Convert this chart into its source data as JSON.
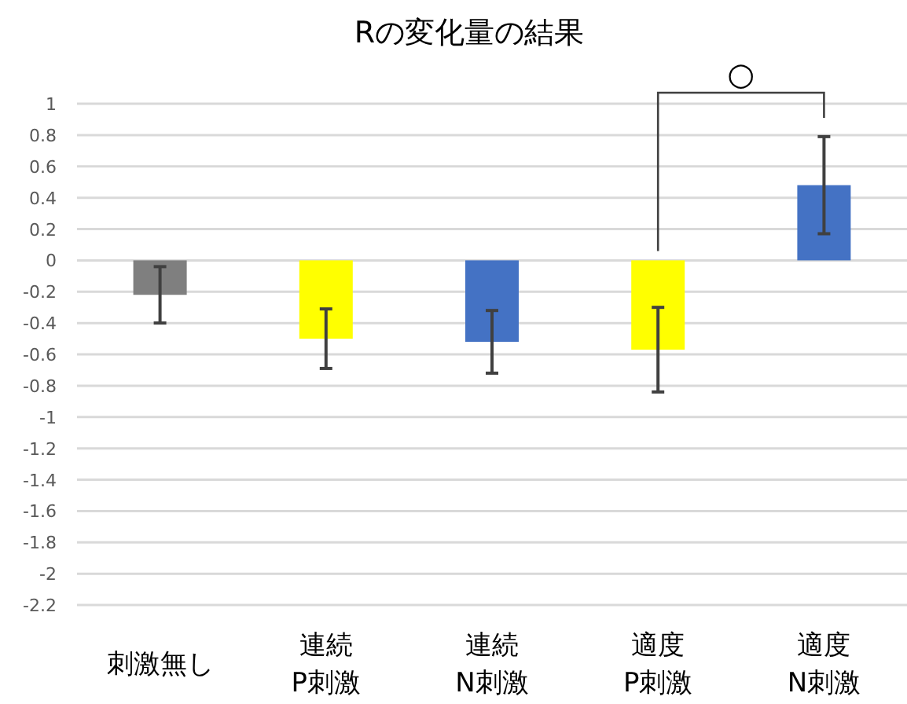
{
  "chart_data": {
    "type": "bar",
    "title": "Rの変化量の結果",
    "categories": [
      "刺激無し",
      "連続\nP刺激",
      "連続\nN刺激",
      "適度\nP刺激",
      "適度\nN刺激"
    ],
    "values": [
      -0.22,
      -0.5,
      -0.52,
      -0.57,
      0.48
    ],
    "colors": [
      "#7f7f7f",
      "#ffff00",
      "#4472c4",
      "#ffff00",
      "#4472c4"
    ],
    "errors": [
      0.18,
      0.19,
      0.2,
      0.27,
      0.31
    ],
    "ylim": [
      -2.2,
      1
    ],
    "yticks": [
      1,
      0.8,
      0.6,
      0.4,
      0.2,
      0,
      -0.2,
      -0.4,
      -0.6,
      -0.8,
      -1,
      -1.2,
      -1.4,
      -1.6,
      -1.8,
      -2,
      -2.2
    ],
    "grid": "y",
    "annotations": [
      "○"
    ]
  }
}
